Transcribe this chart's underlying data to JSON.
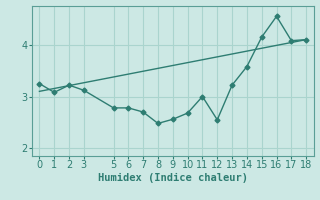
{
  "xlabel": "Humidex (Indice chaleur)",
  "background_color": "#cce8e4",
  "line_color": "#2e7d72",
  "grid_color": "#aad4ce",
  "xlim": [
    -0.5,
    18.5
  ],
  "ylim": [
    1.85,
    4.75
  ],
  "yticks": [
    2,
    3,
    4
  ],
  "xticks": [
    0,
    1,
    2,
    3,
    5,
    6,
    7,
    8,
    9,
    10,
    11,
    12,
    13,
    14,
    15,
    16,
    17,
    18
  ],
  "zigzag_x": [
    0,
    1,
    2,
    3,
    5,
    6,
    7,
    8,
    9,
    10,
    11,
    12,
    13,
    14,
    15,
    16,
    17,
    18
  ],
  "zigzag_y": [
    3.25,
    3.08,
    3.22,
    3.12,
    2.78,
    2.78,
    2.7,
    2.48,
    2.56,
    2.68,
    3.0,
    2.55,
    3.22,
    3.58,
    4.15,
    4.55,
    4.08,
    4.1
  ],
  "trend_x": [
    0,
    18
  ],
  "trend_y": [
    3.1,
    4.1
  ],
  "font_size_tick": 7,
  "font_size_label": 7.5
}
